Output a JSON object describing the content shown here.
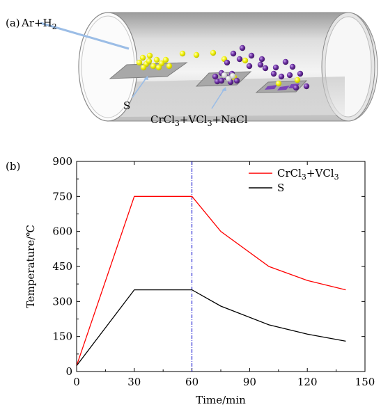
{
  "panel_a": {
    "label": "(a)",
    "gas_label_main": "Ar+H",
    "gas_label_sub": "2",
    "sulfur_label": "S",
    "precursor_label": {
      "p1": "CrCl",
      "s1": "3",
      "p2": "+VCl",
      "s2": "3",
      "p3": "+NaCl"
    },
    "colors": {
      "sulfur_particle": "#f2f20a",
      "cr_particle": "#6a2ea0",
      "salt_particle": "#ffffff",
      "arrow": "#9bbde6"
    }
  },
  "panel_b": {
    "label": "(b)",
    "legend": {
      "red_main": "CrCl",
      "red_sub1": "3",
      "red_mid": "+VCl",
      "red_sub2": "3",
      "black": "S"
    }
  },
  "chart_data": {
    "type": "line",
    "xlabel": "Time/min",
    "ylabel": "Temperature/℃",
    "xlim": [
      0,
      150
    ],
    "ylim": [
      0,
      900
    ],
    "xticks": [
      0,
      30,
      60,
      90,
      120,
      150
    ],
    "yticks": [
      0,
      150,
      300,
      450,
      600,
      750,
      900
    ],
    "grid": false,
    "legend_position": "top-right",
    "vertical_line": {
      "x": 60,
      "color": "#0000cc",
      "style": "dash-dot"
    },
    "series": [
      {
        "name": "CrCl3+VCl3",
        "color": "#ff0000",
        "x": [
          0,
          30,
          60,
          75,
          100,
          120,
          140
        ],
        "y": [
          25,
          750,
          750,
          600,
          450,
          390,
          350
        ]
      },
      {
        "name": "S",
        "color": "#000000",
        "x": [
          0,
          30,
          60,
          75,
          100,
          120,
          140
        ],
        "y": [
          25,
          350,
          350,
          280,
          200,
          160,
          130
        ]
      }
    ]
  }
}
